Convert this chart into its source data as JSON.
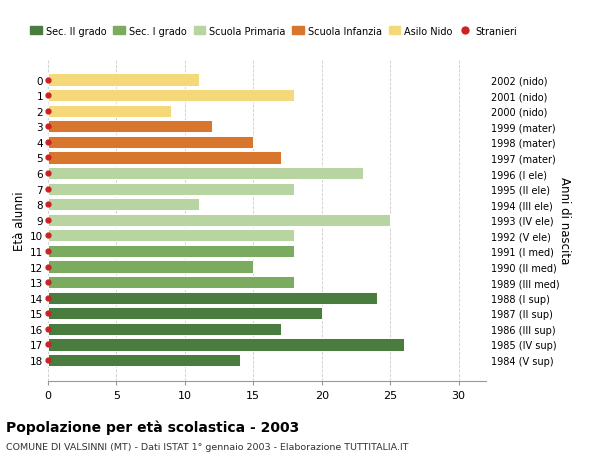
{
  "ages": [
    0,
    1,
    2,
    3,
    4,
    5,
    6,
    7,
    8,
    9,
    10,
    11,
    12,
    13,
    14,
    15,
    16,
    17,
    18
  ],
  "values": [
    11,
    18,
    9,
    12,
    15,
    17,
    23,
    18,
    11,
    25,
    18,
    18,
    15,
    18,
    24,
    20,
    17,
    26,
    14
  ],
  "right_labels": [
    "2002 (nido)",
    "2001 (nido)",
    "2000 (nido)",
    "1999 (mater)",
    "1998 (mater)",
    "1997 (mater)",
    "1996 (I ele)",
    "1995 (II ele)",
    "1994 (III ele)",
    "1993 (IV ele)",
    "1992 (V ele)",
    "1991 (I med)",
    "1990 (II med)",
    "1989 (III med)",
    "1988 (I sup)",
    "1987 (II sup)",
    "1986 (III sup)",
    "1985 (IV sup)",
    "1984 (V sup)"
  ],
  "bar_colors": [
    "#f5d87a",
    "#f5d87a",
    "#f5d87a",
    "#d9762e",
    "#d9762e",
    "#d9762e",
    "#b8d4a0",
    "#b8d4a0",
    "#b8d4a0",
    "#b8d4a0",
    "#b8d4a0",
    "#7aab5e",
    "#7aab5e",
    "#7aab5e",
    "#4a7c3f",
    "#4a7c3f",
    "#4a7c3f",
    "#4a7c3f",
    "#4a7c3f"
  ],
  "legend_labels": [
    "Sec. II grado",
    "Sec. I grado",
    "Scuola Primaria",
    "Scuola Infanzia",
    "Asilo Nido",
    "Stranieri"
  ],
  "legend_colors": [
    "#4a7c3f",
    "#7aab5e",
    "#b8d4a0",
    "#d9762e",
    "#f5d87a",
    "#cc2222"
  ],
  "dot_color": "#cc2222",
  "ylabel": "Età alunni",
  "right_ylabel": "Anni di nascita",
  "title": "Popolazione per età scolastica - 2003",
  "subtitle": "COMUNE DI VALSINNI (MT) - Dati ISTAT 1° gennaio 2003 - Elaborazione TUTTITALIA.IT",
  "xlim": [
    0,
    32
  ],
  "xticks": [
    0,
    5,
    10,
    15,
    20,
    25,
    30
  ],
  "bg_color": "#ffffff",
  "grid_color": "#cccccc"
}
